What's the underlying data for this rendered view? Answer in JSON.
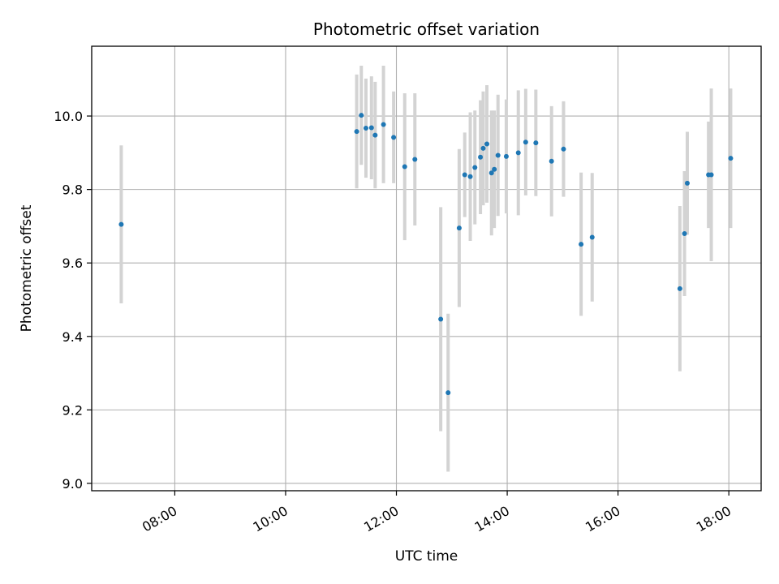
{
  "chart_data": {
    "type": "scatter",
    "title": "Photometric offset variation",
    "xlabel": "UTC time",
    "ylabel": "Photometric offset",
    "x_axis_kind": "time",
    "xlim": [
      "06:30",
      "18:35"
    ],
    "ylim": [
      8.98,
      10.19
    ],
    "x_ticks": [
      "08:00",
      "10:00",
      "12:00",
      "14:00",
      "16:00",
      "18:00"
    ],
    "y_ticks": [
      9.0,
      9.2,
      9.4,
      9.6,
      9.8,
      10.0
    ],
    "y_tick_labels": [
      "9.0",
      "9.2",
      "9.4",
      "9.6",
      "9.8",
      "10.0"
    ],
    "grid": true,
    "point_color": "#1f77b4",
    "errorbar_color": "#d3d3d3",
    "points": [
      {
        "x": "07:02",
        "y": 9.705,
        "yerr": 0.215
      },
      {
        "x": "11:17",
        "y": 9.958,
        "yerr": 0.155
      },
      {
        "x": "11:22",
        "y": 10.002,
        "yerr": 0.135
      },
      {
        "x": "11:27",
        "y": 9.967,
        "yerr": 0.135
      },
      {
        "x": "11:33",
        "y": 9.968,
        "yerr": 0.14
      },
      {
        "x": "11:37",
        "y": 9.948,
        "yerr": 0.145
      },
      {
        "x": "11:46",
        "y": 9.977,
        "yerr": 0.16
      },
      {
        "x": "11:57",
        "y": 9.942,
        "yerr": 0.125
      },
      {
        "x": "12:09",
        "y": 9.862,
        "yerr": 0.2
      },
      {
        "x": "12:20",
        "y": 9.882,
        "yerr": 0.18
      },
      {
        "x": "12:48",
        "y": 9.447,
        "yerr": 0.305
      },
      {
        "x": "12:56",
        "y": 9.247,
        "yerr": 0.215
      },
      {
        "x": "13:08",
        "y": 9.695,
        "yerr": 0.215
      },
      {
        "x": "13:14",
        "y": 9.84,
        "yerr": 0.115
      },
      {
        "x": "13:20",
        "y": 9.835,
        "yerr": 0.175
      },
      {
        "x": "13:25",
        "y": 9.86,
        "yerr": 0.155
      },
      {
        "x": "13:31",
        "y": 9.888,
        "yerr": 0.155
      },
      {
        "x": "13:34",
        "y": 9.912,
        "yerr": 0.155
      },
      {
        "x": "13:38",
        "y": 9.924,
        "yerr": 0.16
      },
      {
        "x": "13:43",
        "y": 9.845,
        "yerr": 0.17
      },
      {
        "x": "13:46",
        "y": 9.855,
        "yerr": 0.16
      },
      {
        "x": "13:50",
        "y": 9.893,
        "yerr": 0.165
      },
      {
        "x": "13:59",
        "y": 9.89,
        "yerr": 0.155
      },
      {
        "x": "14:12",
        "y": 9.9,
        "yerr": 0.17
      },
      {
        "x": "14:20",
        "y": 9.929,
        "yerr": 0.145
      },
      {
        "x": "14:31",
        "y": 9.927,
        "yerr": 0.145
      },
      {
        "x": "14:48",
        "y": 9.877,
        "yerr": 0.15
      },
      {
        "x": "15:01",
        "y": 9.91,
        "yerr": 0.13
      },
      {
        "x": "15:20",
        "y": 9.651,
        "yerr": 0.195
      },
      {
        "x": "15:32",
        "y": 9.67,
        "yerr": 0.175
      },
      {
        "x": "17:07",
        "y": 9.53,
        "yerr": 0.225
      },
      {
        "x": "17:12",
        "y": 9.68,
        "yerr": 0.17
      },
      {
        "x": "17:15",
        "y": 9.817,
        "yerr": 0.14
      },
      {
        "x": "17:38",
        "y": 9.84,
        "yerr": 0.145
      },
      {
        "x": "17:41",
        "y": 9.84,
        "yerr": 0.235
      },
      {
        "x": "18:02",
        "y": 9.885,
        "yerr": 0.19
      }
    ]
  }
}
